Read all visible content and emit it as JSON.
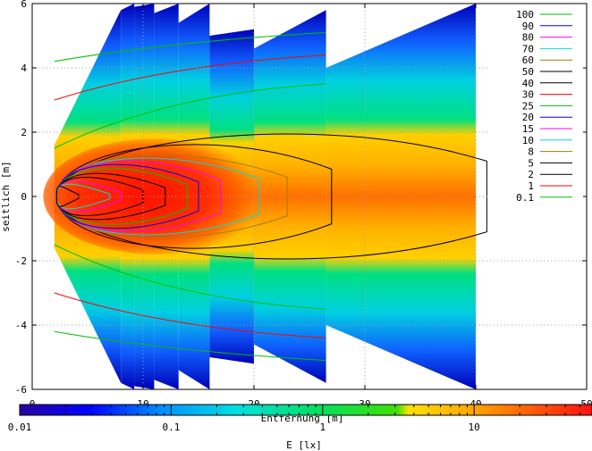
{
  "chart_data": {
    "type": "heatmap",
    "title": "",
    "xlabel": "Entfernung [m]",
    "ylabel": "seitlich [m]",
    "xlim": [
      0,
      50
    ],
    "ylim": [
      -6,
      6
    ],
    "x_ticks": [
      "0",
      "10",
      "20",
      "30",
      "40",
      "50"
    ],
    "y_ticks": [
      "-6",
      "-4",
      "-2",
      "0",
      "2",
      "4",
      "6"
    ],
    "grid": true,
    "legend_placement": "top-right",
    "colorbar": {
      "label": "E [lx]",
      "scale": "log",
      "range": [
        0.01,
        60
      ],
      "ticks": [
        "0.01",
        "0.1",
        "1",
        "10"
      ]
    },
    "contour_levels": [
      {
        "label": "100",
        "color": "#00c000"
      },
      {
        "label": "90",
        "color": "#0000ff"
      },
      {
        "label": "80",
        "color": "#ff00ff"
      },
      {
        "label": "70",
        "color": "#00dddd"
      },
      {
        "label": "60",
        "color": "#a08000"
      },
      {
        "label": "50",
        "color": "#000000"
      },
      {
        "label": "40",
        "color": "#000000"
      },
      {
        "label": "30",
        "color": "#ff0000"
      },
      {
        "label": "25",
        "color": "#00c000"
      },
      {
        "label": "20",
        "color": "#0000ff"
      },
      {
        "label": "15",
        "color": "#ff00ff"
      },
      {
        "label": "10",
        "color": "#00dddd"
      },
      {
        "label": "8",
        "color": "#a08000"
      },
      {
        "label": "5",
        "color": "#000000"
      },
      {
        "label": "2",
        "color": "#000000"
      },
      {
        "label": "1",
        "color": "#ff0000"
      },
      {
        "label": "0.1",
        "color": "#00c000"
      }
    ]
  }
}
